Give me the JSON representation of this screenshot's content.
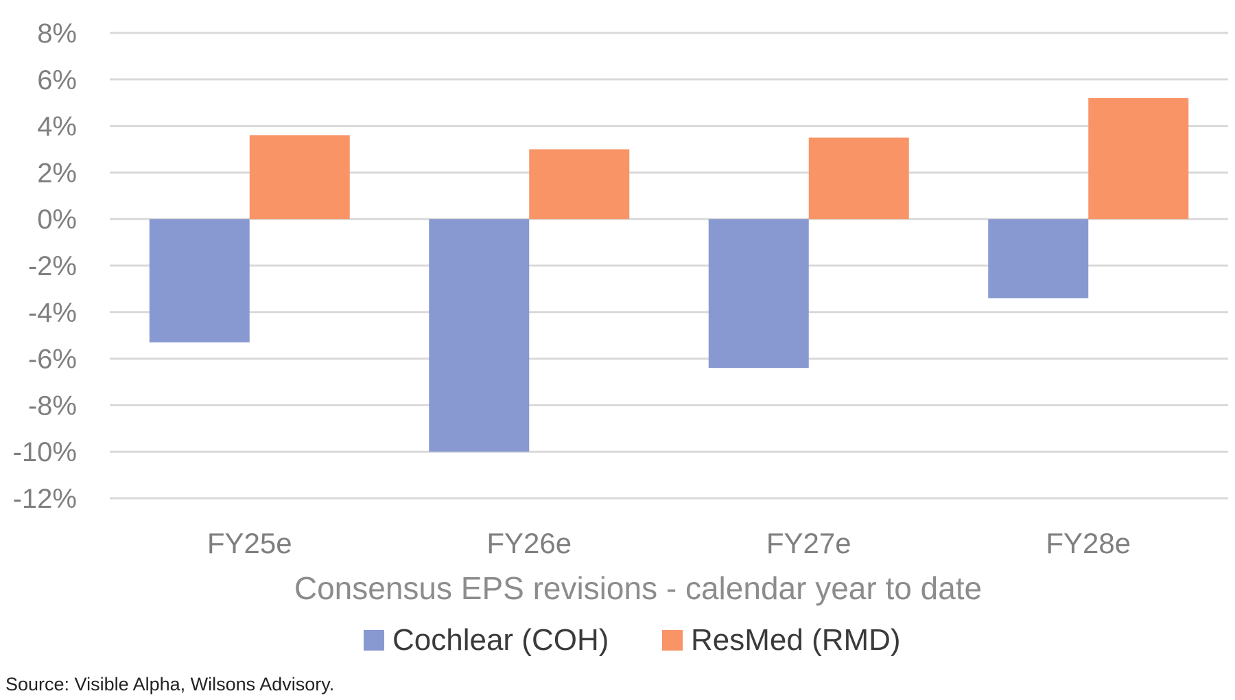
{
  "chart_data": {
    "type": "bar",
    "title": "",
    "xlabel": "Consensus EPS revisions - calendar year to date",
    "ylabel": "",
    "categories": [
      "FY25e",
      "FY26e",
      "FY27e",
      "FY28e"
    ],
    "series": [
      {
        "name": "Cochlear (COH)",
        "color": "#8899d2",
        "values": [
          -5.3,
          -10.0,
          -6.4,
          -3.4
        ]
      },
      {
        "name": "ResMed (RMD)",
        "color": "#f99467",
        "values": [
          3.6,
          3.0,
          3.5,
          5.2
        ]
      }
    ],
    "ylim": [
      -12,
      8
    ],
    "yticks": [
      8,
      6,
      4,
      2,
      0,
      -2,
      -4,
      -6,
      -8,
      -10,
      -12
    ],
    "ytick_labels": [
      "8%",
      "6%",
      "4%",
      "2%",
      "0%",
      "-2%",
      "-4%",
      "-6%",
      "-8%",
      "-10%",
      "-12%"
    ],
    "grid": true,
    "gridline_color": "#d9d9d9",
    "legend_placement": "bottom-center"
  },
  "source_note": "Source: Visible Alpha, Wilsons Advisory."
}
